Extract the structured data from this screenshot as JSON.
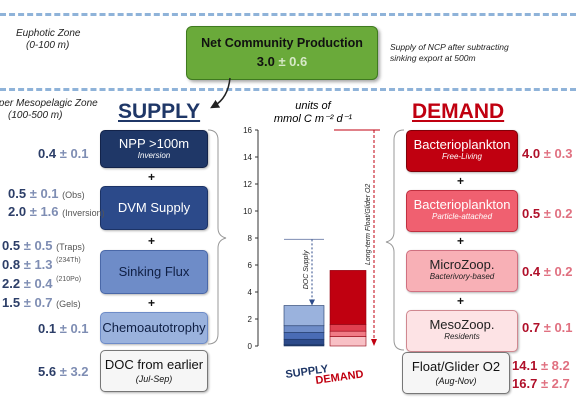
{
  "zones": {
    "euphotic_name": "Euphotic Zone",
    "euphotic_depth": "(0-100 m)",
    "meso_name": "Upper Mesopelagic Zone",
    "meso_depth": "(100-500 m)"
  },
  "ncp": {
    "title": "Net Community Production",
    "value": "3.0",
    "pm": "± 0.6",
    "note_line1": "Supply of NCP after subtracting",
    "note_line2": "sinking export at 500m"
  },
  "supply": {
    "heading": "SUPPLY",
    "items": [
      {
        "label": "NPP >100m",
        "sub": "Inversion"
      },
      {
        "label": "DVM Supply",
        "sub": ""
      },
      {
        "label": "Sinking Flux",
        "sub": ""
      },
      {
        "label": "Chemoautotrophy",
        "sub": ""
      },
      {
        "label": "DOC from earlier",
        "sub": "(Jul-Sep)"
      }
    ],
    "values": {
      "npp": {
        "v": "0.4",
        "pm": "± 0.1"
      },
      "dvm_obs": {
        "v": "0.5",
        "pm": "± 0.1",
        "tag": "(Obs)"
      },
      "dvm_inv": {
        "v": "2.0",
        "pm": "± 1.6",
        "tag": "(Inversion)"
      },
      "sink_traps": {
        "v": "0.5",
        "pm": "± 0.5",
        "tag": "(Traps)"
      },
      "sink_th": {
        "v": "0.8",
        "pm": "± 1.3",
        "sup": "(234Th)"
      },
      "sink_po": {
        "v": "2.2",
        "pm": "± 0.4",
        "sup": "(210Po)"
      },
      "sink_gels": {
        "v": "1.5",
        "pm": "± 0.7",
        "tag": "(Gels)"
      },
      "chemo": {
        "v": "0.1",
        "pm": "± 0.1"
      },
      "doc": {
        "v": "5.6",
        "pm": "± 3.2"
      }
    }
  },
  "demand": {
    "heading": "DEMAND",
    "items": [
      {
        "label": "Bacterioplankton",
        "sub": "Free-Living"
      },
      {
        "label": "Bacterioplankton",
        "sub": "Particle-attached"
      },
      {
        "label": "MicroZoop.",
        "sub": "Bacterivory-based"
      },
      {
        "label": "MesoZoop.",
        "sub": "Residents"
      },
      {
        "label": "Float/Glider O2",
        "sub": "(Aug-Nov)"
      }
    ],
    "values": {
      "free": {
        "v": "4.0",
        "pm": "± 0.3"
      },
      "attached": {
        "v": "0.5",
        "pm": "± 0.2"
      },
      "micro": {
        "v": "0.4",
        "pm": "± 0.2"
      },
      "meso": {
        "v": "0.7",
        "pm": "± 0.1"
      },
      "o2_a": {
        "v": "14.1",
        "pm": "± 8.2"
      },
      "o2_b": {
        "v": "16.7",
        "pm": "± 2.7"
      }
    }
  },
  "plus_sign": "+",
  "units_line1": "units of",
  "units_line2": "mmol C m⁻² d⁻¹",
  "chart_data": {
    "type": "bar",
    "ylim": [
      0,
      16
    ],
    "yticks": [
      0,
      2,
      4,
      6,
      8,
      10,
      12,
      14,
      16
    ],
    "categories": [
      "SUPPLY",
      "DEMAND"
    ],
    "supply_stack": [
      {
        "value": 0.1,
        "color": "#1f3767"
      },
      {
        "value": 0.4,
        "color": "#2c4a8a"
      },
      {
        "value": 0.5,
        "color": "#4a6cb5"
      },
      {
        "value": 0.5,
        "color": "#6e8cc8"
      },
      {
        "value": 1.5,
        "color": "#9ab2dd"
      }
    ],
    "demand_stack": [
      {
        "value": 4.0,
        "color": "#c00010"
      },
      {
        "value": 0.5,
        "color": "#e04050"
      },
      {
        "value": 0.4,
        "color": "#f07a85"
      },
      {
        "value": 0.7,
        "color": "#f8c0c5"
      }
    ],
    "doc_supply_range": [
      3.0,
      7.9
    ],
    "doc_supply_label": "DOC Supply",
    "o2_range": [
      0,
      16
    ],
    "o2_label": "Long-term Float/Glider O2"
  }
}
